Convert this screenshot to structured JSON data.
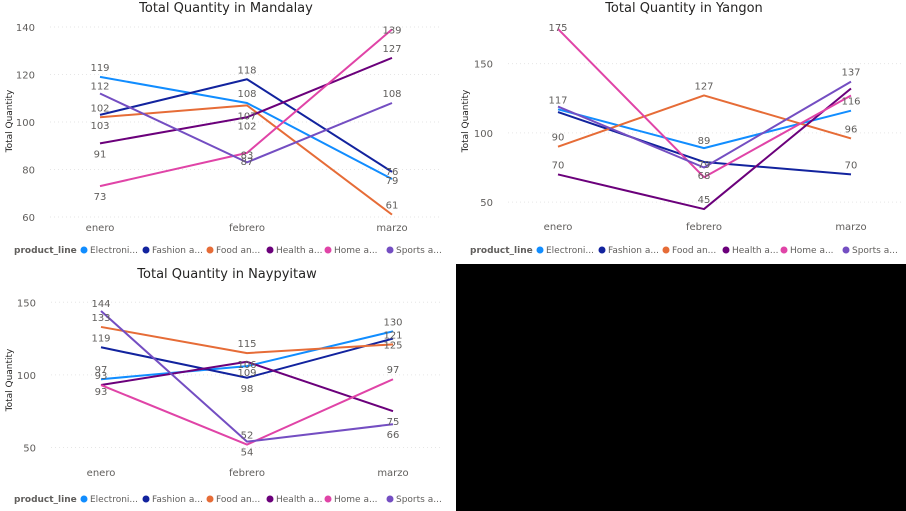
{
  "legend": {
    "title": "product_line",
    "items": [
      {
        "label": "Electroni...",
        "color": "#118dff"
      },
      {
        "label": "Fashion a...",
        "color": "#12239e"
      },
      {
        "label": "Food an...",
        "color": "#e66c37"
      },
      {
        "label": "Health a...",
        "color": "#6b007b"
      },
      {
        "label": "Home a...",
        "color": "#e044a7"
      },
      {
        "label": "Sports a...",
        "color": "#744ec2"
      }
    ]
  },
  "chart_data": [
    {
      "type": "line",
      "title": "Total Quantity in Mandalay",
      "xlabel": "",
      "ylabel": "Total Quantity",
      "categories": [
        "enero",
        "febrero",
        "marzo"
      ],
      "ylim": [
        60,
        140
      ],
      "yticks": [
        60,
        80,
        100,
        120,
        140
      ],
      "grid": true,
      "legend_position": "bottom-left",
      "series": [
        {
          "name": "Electroni...",
          "values": [
            119,
            108,
            76
          ]
        },
        {
          "name": "Fashion a...",
          "values": [
            103,
            118,
            79
          ]
        },
        {
          "name": "Food an...",
          "values": [
            102,
            107,
            61
          ]
        },
        {
          "name": "Health a...",
          "values": [
            91,
            102,
            127
          ]
        },
        {
          "name": "Home a...",
          "values": [
            73,
            87,
            139
          ]
        },
        {
          "name": "Sports a...",
          "values": [
            112,
            83,
            108
          ]
        }
      ]
    },
    {
      "type": "line",
      "title": "Total Quantity in Yangon",
      "xlabel": "",
      "ylabel": "Total Quantity",
      "categories": [
        "enero",
        "febrero",
        "marzo"
      ],
      "ylim": [
        40,
        180
      ],
      "yticks": [
        50,
        100,
        150
      ],
      "grid": true,
      "legend_position": "bottom-left",
      "series": [
        {
          "name": "Electroni...",
          "values": [
            117,
            89,
            116
          ]
        },
        {
          "name": "Fashion a...",
          "values": [
            115,
            79,
            70
          ]
        },
        {
          "name": "Food an...",
          "values": [
            90,
            127,
            96
          ]
        },
        {
          "name": "Health a...",
          "values": [
            70,
            45,
            132
          ]
        },
        {
          "name": "Home a...",
          "values": [
            175,
            68,
            127
          ]
        },
        {
          "name": "Sports a...",
          "values": [
            119,
            75,
            137
          ]
        }
      ]
    },
    {
      "type": "line",
      "title": "Total Quantity in Naypyitaw",
      "xlabel": "",
      "ylabel": "Total Quantity",
      "categories": [
        "enero",
        "febrero",
        "marzo"
      ],
      "ylim": [
        40,
        155
      ],
      "yticks": [
        50,
        100,
        150
      ],
      "grid": true,
      "legend_position": "bottom-left",
      "series": [
        {
          "name": "Electroni...",
          "values": [
            97,
            106,
            130
          ]
        },
        {
          "name": "Fashion a...",
          "values": [
            119,
            98,
            125
          ]
        },
        {
          "name": "Food an...",
          "values": [
            133,
            115,
            121
          ]
        },
        {
          "name": "Health a...",
          "values": [
            93,
            109,
            75
          ]
        },
        {
          "name": "Home a...",
          "values": [
            93,
            52,
            97
          ]
        },
        {
          "name": "Sports a...",
          "values": [
            144,
            54,
            66
          ]
        }
      ]
    }
  ]
}
